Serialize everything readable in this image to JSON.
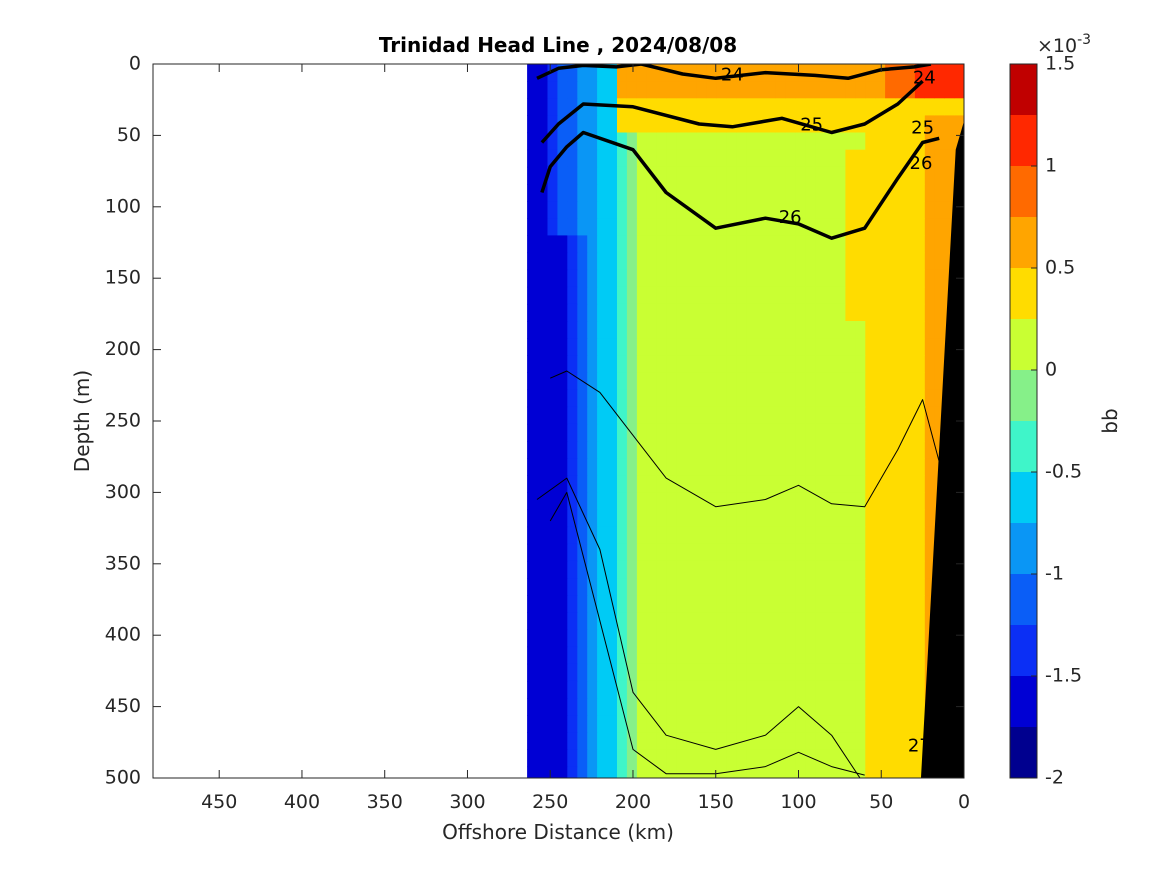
{
  "chart_data": {
    "type": "heatmap",
    "title": "Trinidad Head Line , 2024/08/08",
    "xlabel": "Offshore Distance (km)",
    "ylabel": "Depth (m)",
    "xlim": [
      490,
      0
    ],
    "ylim": [
      500,
      0
    ],
    "x_reversed": true,
    "y_reversed": true,
    "x_ticks": [
      450,
      400,
      350,
      300,
      250,
      200,
      150,
      100,
      50,
      0
    ],
    "y_ticks": [
      0,
      50,
      100,
      150,
      200,
      250,
      300,
      350,
      400,
      450,
      500
    ],
    "grid": false,
    "data_extent_x": [
      0,
      262
    ],
    "colorbar": {
      "label": "bb",
      "exponent_label": "×10",
      "exponent_power": "-3",
      "min": -2,
      "max": 1.5,
      "tick_values": [
        1.5,
        1,
        0.5,
        0,
        -0.5,
        -1,
        -1.5,
        -2
      ],
      "tick_labels": [
        "1.5",
        "1",
        "0.5",
        "0",
        "-0.5",
        "-1",
        "-1.5",
        "-2"
      ],
      "levels": [
        -2,
        -1.75,
        -1.5,
        -1.25,
        -1,
        -0.75,
        -0.5,
        -0.25,
        0,
        0.25,
        0.5,
        0.75,
        1,
        1.25,
        1.5
      ],
      "colors": [
        "#00008f",
        "#0000d4",
        "#0b2ff5",
        "#0a5ef7",
        "#0a96f5",
        "#00cbf5",
        "#3ff5c9",
        "#86f089",
        "#c9ff33",
        "#ffdc00",
        "#ffa500",
        "#ff6a00",
        "#ff2800",
        "#c00000"
      ]
    },
    "density_contour_labels": [
      {
        "value": "24",
        "x": 24,
        "depth": 10
      },
      {
        "value": "24",
        "x": 140,
        "depth": 8
      },
      {
        "value": "25",
        "x": 25,
        "depth": 45
      },
      {
        "value": "25",
        "x": 92,
        "depth": 43
      },
      {
        "value": "26",
        "x": 26,
        "depth": 70
      },
      {
        "value": "26",
        "x": 105,
        "depth": 108
      },
      {
        "value": "27",
        "x": 27,
        "depth": 478
      }
    ],
    "isopycnal_26": [
      [
        255,
        90
      ],
      [
        250,
        72
      ],
      [
        240,
        58
      ],
      [
        230,
        48
      ],
      [
        200,
        60
      ],
      [
        180,
        90
      ],
      [
        150,
        115
      ],
      [
        120,
        108
      ],
      [
        100,
        112
      ],
      [
        80,
        122
      ],
      [
        60,
        115
      ],
      [
        40,
        80
      ],
      [
        25,
        55
      ],
      [
        15,
        52
      ]
    ],
    "isopycnal_25": [
      [
        255,
        55
      ],
      [
        245,
        42
      ],
      [
        230,
        28
      ],
      [
        200,
        30
      ],
      [
        160,
        42
      ],
      [
        140,
        44
      ],
      [
        110,
        38
      ],
      [
        80,
        48
      ],
      [
        60,
        42
      ],
      [
        40,
        28
      ],
      [
        25,
        12
      ]
    ],
    "isopycnal_24": [
      [
        258,
        10
      ],
      [
        245,
        3
      ],
      [
        230,
        1
      ],
      [
        210,
        2
      ],
      [
        195,
        0
      ],
      [
        170,
        7
      ],
      [
        150,
        10
      ],
      [
        120,
        6
      ],
      [
        90,
        8
      ],
      [
        70,
        10
      ],
      [
        50,
        4
      ],
      [
        30,
        2
      ],
      [
        20,
        0
      ]
    ],
    "series": [
      {
        "name": "bb",
        "description": "backscatter section"
      }
    ]
  }
}
